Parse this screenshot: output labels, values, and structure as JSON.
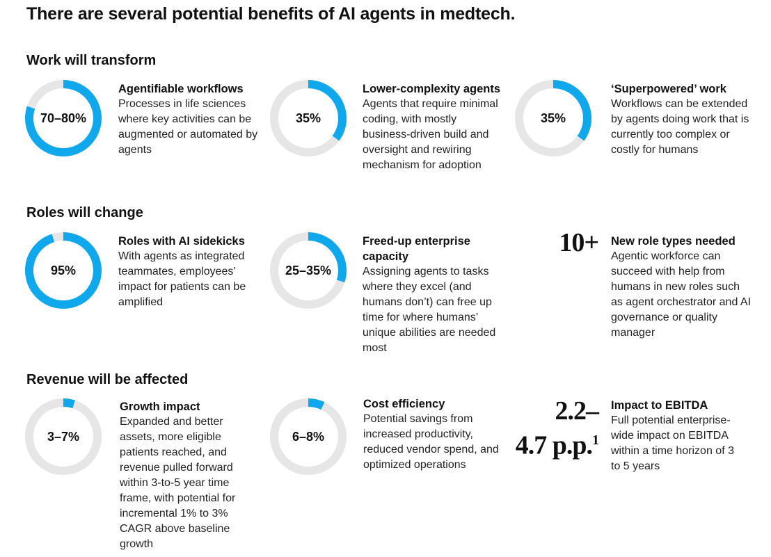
{
  "title": "There are several potential benefits of AI agents in medtech.",
  "colors": {
    "fill": "#10a8ec",
    "track": "#e6e6e6"
  },
  "sections": [
    {
      "label": "Work will transform"
    },
    {
      "label": "Roles will change"
    },
    {
      "label": "Revenue will be affected"
    }
  ],
  "items": [
    {
      "value": "70–80%",
      "heading": "Agentifiable workflows",
      "desc": "Processes in life sciences where key activities can be augmented or automated by agents"
    },
    {
      "value": "35%",
      "heading": "Lower-complexity agents",
      "desc": "Agents that require minimal coding, with mostly business-driven build and oversight and rewiring mechanism for adoption"
    },
    {
      "value": "35%",
      "heading": "‘Superpowered’ work",
      "desc": "Workflows can be extended by agents doing work that is currently too complex or costly for humans"
    },
    {
      "value": "95%",
      "heading": "Roles with AI sidekicks",
      "desc": "With agents as integrated teammates, employees’ impact for patients can be amplified"
    },
    {
      "value": "25–35%",
      "heading": "Freed-up enterprise capacity",
      "desc": "Assigning agents to tasks where they excel (and humans don’t) can free up time for where humans’ unique abilities are needed most"
    },
    {
      "value": "10+",
      "heading": "New role types needed",
      "desc": "Agentic workforce can succeed with help from humans in new roles such as agent orchestrator and AI governance or quality manager"
    },
    {
      "value": "3–7%",
      "heading": "Growth impact",
      "desc": "Expanded and better assets, more eligible patients reached, and revenue pulled forward within 3-to-5 year time frame, with potential for incremental 1% to 3% CAGR above baseline growth"
    },
    {
      "value": "6–8%",
      "heading": "Cost efficiency",
      "desc": "Potential savings from increased productivity, reduced vendor spend, and optimized operations"
    },
    {
      "value_line1": "2.2–",
      "value_line2": "4.7 p.p.",
      "footnote": "1",
      "heading": "Impact to EBITDA",
      "desc": "Full potential enterprise-wide impact on EBITDA within a time horizon of 3 to 5 years"
    }
  ],
  "chart_data": {
    "type": "pie",
    "subtype": "donut-gauge",
    "categories": [
      "Agentifiable workflows",
      "Lower-complexity agents",
      "‘Superpowered’ work",
      "Roles with AI sidekicks",
      "Freed-up enterprise capacity",
      "Growth impact",
      "Cost efficiency"
    ],
    "values": [
      80,
      35,
      35,
      95,
      30,
      5,
      7
    ],
    "labels": [
      "70–80%",
      "35%",
      "35%",
      "95%",
      "25–35%",
      "3–7%",
      "6–8%"
    ],
    "range": [
      0,
      100
    ]
  }
}
